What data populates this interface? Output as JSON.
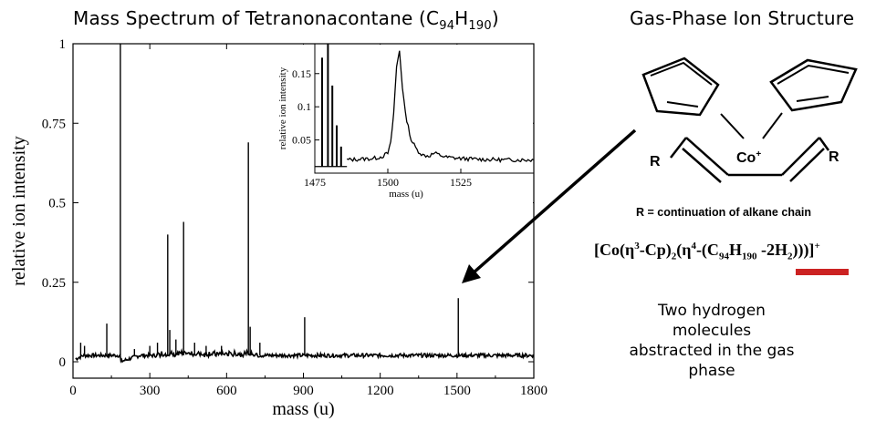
{
  "chart_data": [
    {
      "type": "line",
      "title": "Mass Spectrum of Tetranonacontane (C94H190)",
      "title_parts": {
        "main": "Mass Spectrum of Tetranonacontane (C",
        "sub1": "94",
        "mid": "H",
        "sub2": "190",
        "end": ")"
      },
      "xlabel": "mass (u)",
      "ylabel": "relative ion intensity",
      "xlim": [
        0,
        1800
      ],
      "ylim": [
        0,
        1
      ],
      "xticks": [
        "0",
        "300",
        "600",
        "900",
        "1200",
        "1500",
        "1800"
      ],
      "yticks": [
        "0",
        "0.25",
        "0.5",
        "0.75",
        "1"
      ],
      "baseline": 0.02,
      "peaks": [
        {
          "x": 30,
          "y": 0.06
        },
        {
          "x": 45,
          "y": 0.05
        },
        {
          "x": 132,
          "y": 0.12
        },
        {
          "x": 185,
          "y": 1.0
        },
        {
          "x": 240,
          "y": 0.04
        },
        {
          "x": 300,
          "y": 0.05
        },
        {
          "x": 330,
          "y": 0.06
        },
        {
          "x": 370,
          "y": 0.4
        },
        {
          "x": 378,
          "y": 0.1
        },
        {
          "x": 402,
          "y": 0.07
        },
        {
          "x": 432,
          "y": 0.44
        },
        {
          "x": 475,
          "y": 0.06
        },
        {
          "x": 520,
          "y": 0.05
        },
        {
          "x": 580,
          "y": 0.05
        },
        {
          "x": 685,
          "y": 0.69
        },
        {
          "x": 692,
          "y": 0.11
        },
        {
          "x": 730,
          "y": 0.06
        },
        {
          "x": 905,
          "y": 0.14
        },
        {
          "x": 1505,
          "y": 0.2
        }
      ]
    },
    {
      "type": "line",
      "title": "",
      "xlabel": "mass (u)",
      "ylabel": "relative ion intensity",
      "xlim": [
        1475,
        1550
      ],
      "ylim": [
        0,
        0.195
      ],
      "xticks": [
        "1475",
        "1500",
        "1525"
      ],
      "yticks": [
        "0.05",
        "0.1",
        "0.15"
      ],
      "baseline": 0.02,
      "bars": [
        {
          "x": 1477.5,
          "y": 0.174
        },
        {
          "x": 1479.5,
          "y": 0.195
        },
        {
          "x": 1481.0,
          "y": 0.132
        },
        {
          "x": 1482.5,
          "y": 0.072
        },
        {
          "x": 1484.0,
          "y": 0.04
        }
      ],
      "profile": [
        [
          1486,
          0.02
        ],
        [
          1490,
          0.021
        ],
        [
          1495,
          0.022
        ],
        [
          1498,
          0.025
        ],
        [
          1500,
          0.03
        ],
        [
          1501,
          0.045
        ],
        [
          1502,
          0.09
        ],
        [
          1503,
          0.16
        ],
        [
          1504,
          0.185
        ],
        [
          1505,
          0.13
        ],
        [
          1506,
          0.09
        ],
        [
          1507,
          0.07
        ],
        [
          1508,
          0.05
        ],
        [
          1510,
          0.035
        ],
        [
          1512,
          0.027
        ],
        [
          1514,
          0.026
        ],
        [
          1516,
          0.03
        ],
        [
          1518,
          0.027
        ],
        [
          1520,
          0.024
        ],
        [
          1525,
          0.022
        ],
        [
          1530,
          0.021
        ],
        [
          1540,
          0.02
        ],
        [
          1550,
          0.02
        ]
      ]
    }
  ],
  "structure": {
    "title": "Gas-Phase Ion Structure",
    "metal_label": "Co+",
    "metal": "Co",
    "charge": "+",
    "r_label": "R",
    "r_definition": "R = continuation of alkane chain"
  },
  "formula": {
    "open": "[Co(η",
    "sup1": "3",
    "mid1": "-Cp)",
    "sub1": "2",
    "mid2": "(η",
    "sup2": "4",
    "mid3": "-(C",
    "sub2": "94",
    "mid4": "H",
    "sub3": "190",
    "mid5": " -2H",
    "sub4": "2",
    "close": ")))]",
    "charge": "+"
  },
  "caption": {
    "line1": "Two hydrogen molecules",
    "line2": "abstracted in the gas",
    "line3": "phase"
  },
  "colors": {
    "plot": "#000000",
    "highlight_bar": "#cc2222",
    "arrow": "#000000"
  }
}
